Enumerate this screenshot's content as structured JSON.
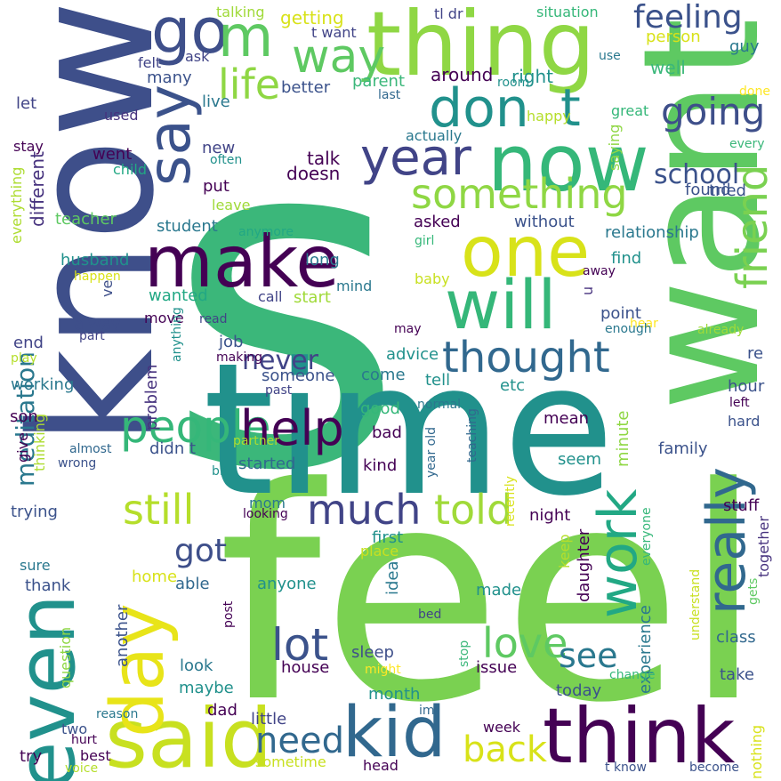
{
  "palette": {
    "dark_purple": "#440154",
    "indigo": "#3b528b",
    "blue": "#31688e",
    "teal": "#21918c",
    "green": "#35b779",
    "lime": "#8fd744",
    "yellow": "#d9e021",
    "bright_yellow": "#fde725"
  },
  "words": [
    {
      "text": "feel",
      "color": "#7ad151"
    },
    {
      "text": "s",
      "color": "#3bb77a"
    },
    {
      "text": "time",
      "color": "#21918c"
    },
    {
      "text": "know",
      "color": "#3e4f8a"
    },
    {
      "text": "want",
      "color": "#5ec962"
    },
    {
      "text": "thing",
      "color": "#8fd744"
    },
    {
      "text": "think",
      "color": "#440154"
    },
    {
      "text": "said",
      "color": "#c8e020"
    },
    {
      "text": "kid",
      "color": "#31688e"
    },
    {
      "text": "even",
      "color": "#21918c"
    },
    {
      "text": "now",
      "color": "#35b779"
    },
    {
      "text": "one",
      "color": "#d8e219"
    },
    {
      "text": "make",
      "color": "#440154"
    },
    {
      "text": "will",
      "color": "#35b779"
    },
    {
      "text": "day",
      "color": "#e8e419"
    },
    {
      "text": "say",
      "color": "#3b528b"
    },
    {
      "text": "go",
      "color": "#3e4f8a"
    },
    {
      "text": "m",
      "color": "#5ec962"
    },
    {
      "text": "way",
      "color": "#5ec962"
    },
    {
      "text": "don",
      "color": "#21918c"
    },
    {
      "text": "t",
      "color": "#21918c"
    },
    {
      "text": "year",
      "color": "#414487"
    },
    {
      "text": "something",
      "color": "#8fd744"
    },
    {
      "text": "work",
      "color": "#22a884"
    },
    {
      "text": "really",
      "color": "#31688e"
    },
    {
      "text": "friend",
      "color": "#7ad151"
    },
    {
      "text": "feeling",
      "color": "#3b528b"
    },
    {
      "text": "going",
      "color": "#3e4f8a"
    },
    {
      "text": "life",
      "color": "#8fd744"
    },
    {
      "text": "school",
      "color": "#3b528b"
    },
    {
      "text": "people",
      "color": "#35b779"
    },
    {
      "text": "help",
      "color": "#440154"
    },
    {
      "text": "thought",
      "color": "#31688e"
    },
    {
      "text": "still",
      "color": "#b5de2b"
    },
    {
      "text": "much",
      "color": "#414487"
    },
    {
      "text": "told",
      "color": "#a0da39"
    },
    {
      "text": "lot",
      "color": "#3b528b"
    },
    {
      "text": "love",
      "color": "#5ec962"
    },
    {
      "text": "see",
      "color": "#2a788e"
    },
    {
      "text": "need",
      "color": "#31688e"
    },
    {
      "text": "back",
      "color": "#d8e219"
    },
    {
      "text": "got",
      "color": "#3e4f8a"
    },
    {
      "text": "never",
      "color": "#414487"
    },
    {
      "text": "meditation",
      "color": "#2a788e"
    },
    {
      "text": "different",
      "color": "#46327e"
    },
    {
      "text": "everything",
      "color": "#addc30"
    },
    {
      "text": "talking",
      "color": "#a0da39"
    },
    {
      "text": "getting",
      "color": "#d8e219"
    },
    {
      "text": "t want",
      "color": "#414487"
    },
    {
      "text": "tl dr",
      "color": "#414487"
    },
    {
      "text": "situation",
      "color": "#35b779"
    },
    {
      "text": "person",
      "color": "#d8e219"
    },
    {
      "text": "guy",
      "color": "#2a788e"
    },
    {
      "text": "ask",
      "color": "#414487"
    },
    {
      "text": "felt",
      "color": "#414487"
    },
    {
      "text": "many",
      "color": "#3b528b"
    },
    {
      "text": "around",
      "color": "#440154"
    },
    {
      "text": "right",
      "color": "#21918c"
    },
    {
      "text": "well",
      "color": "#3bb77a"
    },
    {
      "text": "use",
      "color": "#2a788e"
    },
    {
      "text": "better",
      "color": "#3b528b"
    },
    {
      "text": "parent",
      "color": "#3bb77a"
    },
    {
      "text": "last",
      "color": "#31688e"
    },
    {
      "text": "room",
      "color": "#21918c"
    },
    {
      "text": "great",
      "color": "#35b779"
    },
    {
      "text": "done",
      "color": "#fde725"
    },
    {
      "text": "let",
      "color": "#414487"
    },
    {
      "text": "live",
      "color": "#2a788e"
    },
    {
      "text": "used",
      "color": "#46327e"
    },
    {
      "text": "happy",
      "color": "#b5de2b"
    },
    {
      "text": "actually",
      "color": "#2a788e"
    },
    {
      "text": "saying",
      "color": "#8fd744"
    },
    {
      "text": "every",
      "color": "#3bb77a"
    },
    {
      "text": "stay",
      "color": "#440154"
    },
    {
      "text": "new",
      "color": "#414487"
    },
    {
      "text": "went",
      "color": "#440154"
    },
    {
      "text": "often",
      "color": "#21918c"
    },
    {
      "text": "child",
      "color": "#22a884"
    },
    {
      "text": "talk",
      "color": "#440154"
    },
    {
      "text": "doesn",
      "color": "#440154"
    },
    {
      "text": "found",
      "color": "#3b528b"
    },
    {
      "text": "tried",
      "color": "#3b528b"
    },
    {
      "text": "put",
      "color": "#440154"
    },
    {
      "text": "leave",
      "color": "#a0da39"
    },
    {
      "text": "teacher",
      "color": "#5ec962"
    },
    {
      "text": "asked",
      "color": "#440154"
    },
    {
      "text": "without",
      "color": "#3b528b"
    },
    {
      "text": "student",
      "color": "#2a788e"
    },
    {
      "text": "anymore",
      "color": "#22a884"
    },
    {
      "text": "relationship",
      "color": "#2a788e"
    },
    {
      "text": "girl",
      "color": "#35b779"
    },
    {
      "text": "husband",
      "color": "#21918c"
    },
    {
      "text": "long",
      "color": "#2a788e"
    },
    {
      "text": "baby",
      "color": "#c8e020"
    },
    {
      "text": "find",
      "color": "#21918c"
    },
    {
      "text": "away",
      "color": "#440154"
    },
    {
      "text": "happen",
      "color": "#d8e219"
    },
    {
      "text": "ve",
      "color": "#3e4f8a"
    },
    {
      "text": "wanted",
      "color": "#22a884"
    },
    {
      "text": "call",
      "color": "#414487"
    },
    {
      "text": "mind",
      "color": "#2a788e"
    },
    {
      "text": "start",
      "color": "#a0da39"
    },
    {
      "text": "u",
      "color": "#46327e"
    },
    {
      "text": "alway",
      "color": "#3e4f8a"
    },
    {
      "text": "move",
      "color": "#440154"
    },
    {
      "text": "anything",
      "color": "#21918c"
    },
    {
      "text": "read",
      "color": "#414487"
    },
    {
      "text": "point",
      "color": "#3b528b"
    },
    {
      "text": "hear",
      "color": "#fde725"
    },
    {
      "text": "part",
      "color": "#414487"
    },
    {
      "text": "may",
      "color": "#440154"
    },
    {
      "text": "enough",
      "color": "#2a788e"
    },
    {
      "text": "already",
      "color": "#a0da39"
    },
    {
      "text": "end",
      "color": "#414487"
    },
    {
      "text": "job",
      "color": "#3b528b"
    },
    {
      "text": "making",
      "color": "#440154"
    },
    {
      "text": "play",
      "color": "#b5de2b"
    },
    {
      "text": "advice",
      "color": "#21918c"
    },
    {
      "text": "re",
      "color": "#3b528b"
    },
    {
      "text": "someone",
      "color": "#3b528b"
    },
    {
      "text": "come",
      "color": "#2a788e"
    },
    {
      "text": "working",
      "color": "#2a788e"
    },
    {
      "text": "problem",
      "color": "#46327e"
    },
    {
      "text": "tell",
      "color": "#21918c"
    },
    {
      "text": "etc",
      "color": "#21918c"
    },
    {
      "text": "hour",
      "color": "#3b528b"
    },
    {
      "text": "past",
      "color": "#414487"
    },
    {
      "text": "normal",
      "color": "#2a788e"
    },
    {
      "text": "son",
      "color": "#440154"
    },
    {
      "text": "good",
      "color": "#35b779"
    },
    {
      "text": "teaching",
      "color": "#31688e"
    },
    {
      "text": "mean",
      "color": "#440154"
    },
    {
      "text": "left",
      "color": "#440154"
    },
    {
      "text": "hard",
      "color": "#3b528b"
    },
    {
      "text": "thinking",
      "color": "#addc30"
    },
    {
      "text": "almost",
      "color": "#31688e"
    },
    {
      "text": "partner",
      "color": "#addc30"
    },
    {
      "text": "bad",
      "color": "#440154"
    },
    {
      "text": "minute",
      "color": "#8fd744"
    },
    {
      "text": "give",
      "color": "#440154"
    },
    {
      "text": "didn t",
      "color": "#3b528b"
    },
    {
      "text": "year old",
      "color": "#31688e"
    },
    {
      "text": "family",
      "color": "#3b528b"
    },
    {
      "text": "wrong",
      "color": "#3b528b"
    },
    {
      "text": "bit",
      "color": "#21918c"
    },
    {
      "text": "started",
      "color": "#31688e"
    },
    {
      "text": "kind",
      "color": "#440154"
    },
    {
      "text": "seem",
      "color": "#21918c"
    },
    {
      "text": "recently",
      "color": "#d8e219"
    },
    {
      "text": "trying",
      "color": "#3b528b"
    },
    {
      "text": "mom",
      "color": "#2a788e"
    },
    {
      "text": "looking",
      "color": "#440154"
    },
    {
      "text": "night",
      "color": "#440154"
    },
    {
      "text": "stuff",
      "color": "#440154"
    },
    {
      "text": "everyone",
      "color": "#35b779"
    },
    {
      "text": "together",
      "color": "#46327e"
    },
    {
      "text": "first",
      "color": "#21918c"
    },
    {
      "text": "sure",
      "color": "#2a788e"
    },
    {
      "text": "place",
      "color": "#c8e020"
    },
    {
      "text": "keep",
      "color": "#b5de2b"
    },
    {
      "text": "daughter",
      "color": "#440154"
    },
    {
      "text": "home",
      "color": "#d8e219"
    },
    {
      "text": "able",
      "color": "#31688e"
    },
    {
      "text": "understand",
      "color": "#c8e020"
    },
    {
      "text": "thank",
      "color": "#3b528b"
    },
    {
      "text": "anyone",
      "color": "#21918c"
    },
    {
      "text": "idea",
      "color": "#2a788e"
    },
    {
      "text": "gets",
      "color": "#5ec962"
    },
    {
      "text": "another",
      "color": "#3b528b"
    },
    {
      "text": "made",
      "color": "#21918c"
    },
    {
      "text": "experience",
      "color": "#2a788e"
    },
    {
      "text": "class",
      "color": "#31688e"
    },
    {
      "text": "question",
      "color": "#8fd744"
    },
    {
      "text": "post",
      "color": "#440154"
    },
    {
      "text": "bed",
      "color": "#414487"
    },
    {
      "text": "stop",
      "color": "#3bb77a"
    },
    {
      "text": "look",
      "color": "#2a788e"
    },
    {
      "text": "house",
      "color": "#440154"
    },
    {
      "text": "sleep",
      "color": "#3e4f8a"
    },
    {
      "text": "issue",
      "color": "#440154"
    },
    {
      "text": "take",
      "color": "#3b528b"
    },
    {
      "text": "might",
      "color": "#fde725"
    },
    {
      "text": "change",
      "color": "#35b779"
    },
    {
      "text": "maybe",
      "color": "#21918c"
    },
    {
      "text": "month",
      "color": "#21918c"
    },
    {
      "text": "today",
      "color": "#3b528b"
    },
    {
      "text": "dad",
      "color": "#440154"
    },
    {
      "text": "nothing",
      "color": "#d8e219"
    },
    {
      "text": "reason",
      "color": "#2a788e"
    },
    {
      "text": "im",
      "color": "#31688e"
    },
    {
      "text": "two",
      "color": "#3b528b"
    },
    {
      "text": "little",
      "color": "#414487"
    },
    {
      "text": "hurt",
      "color": "#440154"
    },
    {
      "text": "week",
      "color": "#440154"
    },
    {
      "text": "try",
      "color": "#440154"
    },
    {
      "text": "best",
      "color": "#440154"
    },
    {
      "text": "voice",
      "color": "#b5de2b"
    },
    {
      "text": "sometime",
      "color": "#c8e020"
    },
    {
      "text": "head",
      "color": "#440154"
    },
    {
      "text": "t know",
      "color": "#3b528b"
    },
    {
      "text": "become",
      "color": "#3b528b"
    }
  ]
}
